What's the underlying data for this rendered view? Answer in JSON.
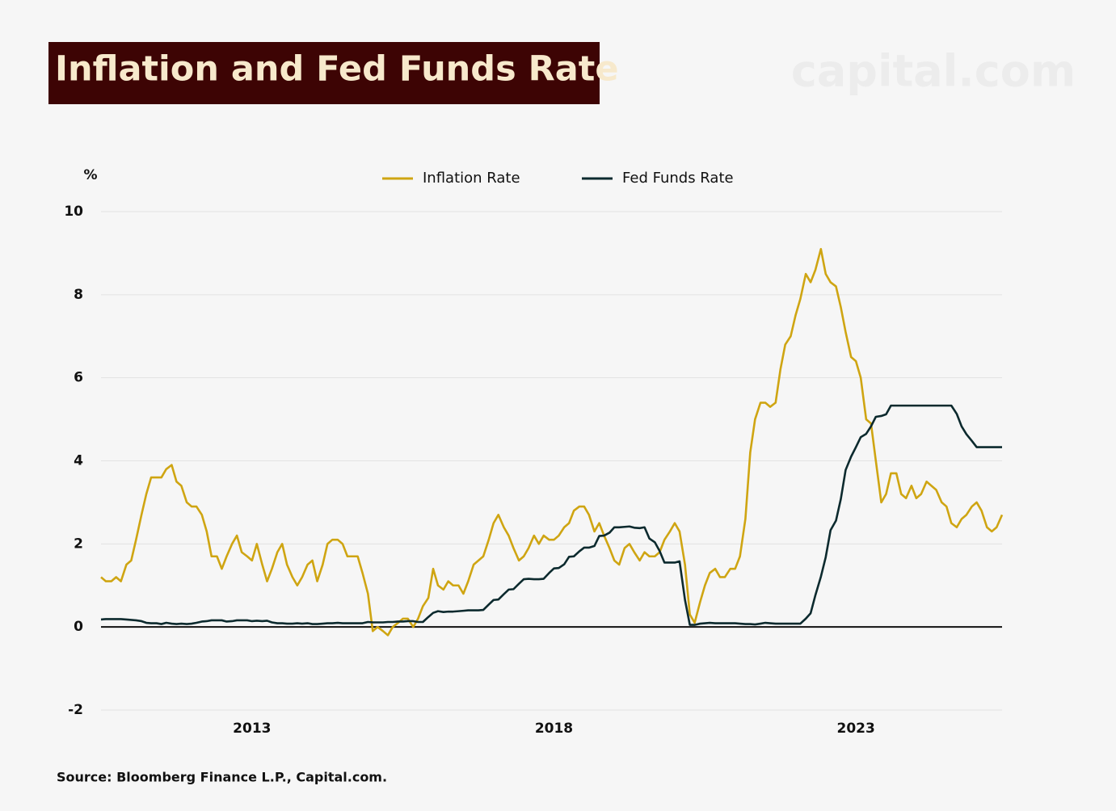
{
  "chart_data": {
    "type": "line",
    "title": "Inflation and Fed Funds Rate",
    "watermark": "capital.com",
    "y_unit": "%",
    "source": "Source: Bloomberg Finance L.P., Capital.com.",
    "xlim": [
      2010.5,
      2025.42
    ],
    "xticks": [
      2013,
      2018,
      2023
    ],
    "ylim": [
      -2,
      10
    ],
    "yticks": [
      -2,
      0,
      2,
      4,
      6,
      8,
      10
    ],
    "grid": true,
    "legend": "top",
    "x": [
      2010.5,
      2010.58,
      2010.67,
      2010.75,
      2010.83,
      2010.92,
      2011,
      2011.08,
      2011.17,
      2011.25,
      2011.33,
      2011.42,
      2011.5,
      2011.58,
      2011.67,
      2011.75,
      2011.83,
      2011.92,
      2012,
      2012.08,
      2012.17,
      2012.25,
      2012.33,
      2012.42,
      2012.5,
      2012.58,
      2012.67,
      2012.75,
      2012.83,
      2012.92,
      2013,
      2013.08,
      2013.17,
      2013.25,
      2013.33,
      2013.42,
      2013.5,
      2013.58,
      2013.67,
      2013.75,
      2013.83,
      2013.92,
      2014,
      2014.08,
      2014.17,
      2014.25,
      2014.33,
      2014.42,
      2014.5,
      2014.58,
      2014.67,
      2014.75,
      2014.83,
      2014.92,
      2015,
      2015.08,
      2015.17,
      2015.25,
      2015.33,
      2015.42,
      2015.5,
      2015.58,
      2015.67,
      2015.75,
      2015.83,
      2015.92,
      2016,
      2016.08,
      2016.17,
      2016.25,
      2016.33,
      2016.42,
      2016.5,
      2016.58,
      2016.67,
      2016.75,
      2016.83,
      2016.92,
      2017,
      2017.08,
      2017.17,
      2017.25,
      2017.33,
      2017.42,
      2017.5,
      2017.58,
      2017.67,
      2017.75,
      2017.83,
      2017.92,
      2018,
      2018.08,
      2018.17,
      2018.25,
      2018.33,
      2018.42,
      2018.5,
      2018.58,
      2018.67,
      2018.75,
      2018.83,
      2018.92,
      2019,
      2019.08,
      2019.17,
      2019.25,
      2019.33,
      2019.42,
      2019.5,
      2019.58,
      2019.67,
      2019.75,
      2019.83,
      2019.92,
      2020,
      2020.08,
      2020.17,
      2020.25,
      2020.33,
      2020.42,
      2020.5,
      2020.58,
      2020.67,
      2020.75,
      2020.83,
      2020.92,
      2021,
      2021.08,
      2021.17,
      2021.25,
      2021.33,
      2021.42,
      2021.5,
      2021.58,
      2021.67,
      2021.75,
      2021.83,
      2021.92,
      2022,
      2022.08,
      2022.17,
      2022.25,
      2022.33,
      2022.42,
      2022.5,
      2022.58,
      2022.67,
      2022.75,
      2022.83,
      2022.92,
      2023,
      2023.08,
      2023.17,
      2023.25,
      2023.33,
      2023.42,
      2023.5,
      2023.58,
      2023.67,
      2023.75,
      2023.83,
      2023.92,
      2024,
      2024.08,
      2024.17,
      2024.25,
      2024.33,
      2024.42,
      2024.5,
      2024.58,
      2024.67,
      2024.75,
      2024.83,
      2024.92,
      2025,
      2025.08,
      2025.17,
      2025.25,
      2025.33,
      2025.42
    ],
    "series": [
      {
        "name": "Inflation Rate",
        "color": "#cfa512",
        "values": [
          1.2,
          1.1,
          1.1,
          1.2,
          1.1,
          1.5,
          1.6,
          2.1,
          2.7,
          3.2,
          3.6,
          3.6,
          3.6,
          3.8,
          3.9,
          3.5,
          3.4,
          3.0,
          2.9,
          2.9,
          2.7,
          2.3,
          1.7,
          1.7,
          1.4,
          1.7,
          2.0,
          2.2,
          1.8,
          1.7,
          1.6,
          2.0,
          1.5,
          1.1,
          1.4,
          1.8,
          2.0,
          1.5,
          1.2,
          1.0,
          1.2,
          1.5,
          1.6,
          1.1,
          1.5,
          2.0,
          2.1,
          2.1,
          2.0,
          1.7,
          1.7,
          1.7,
          1.3,
          0.8,
          -0.1,
          0.0,
          -0.1,
          -0.2,
          0.0,
          0.1,
          0.2,
          0.2,
          0.0,
          0.2,
          0.5,
          0.7,
          1.4,
          1.0,
          0.9,
          1.1,
          1.0,
          1.0,
          0.8,
          1.1,
          1.5,
          1.6,
          1.7,
          2.1,
          2.5,
          2.7,
          2.4,
          2.2,
          1.9,
          1.6,
          1.7,
          1.9,
          2.2,
          2.0,
          2.2,
          2.1,
          2.1,
          2.2,
          2.4,
          2.5,
          2.8,
          2.9,
          2.9,
          2.7,
          2.3,
          2.5,
          2.2,
          1.9,
          1.6,
          1.5,
          1.9,
          2.0,
          1.8,
          1.6,
          1.8,
          1.7,
          1.7,
          1.8,
          2.1,
          2.3,
          2.5,
          2.3,
          1.5,
          0.3,
          0.1,
          0.6,
          1.0,
          1.3,
          1.4,
          1.2,
          1.2,
          1.4,
          1.4,
          1.7,
          2.6,
          4.2,
          5.0,
          5.4,
          5.4,
          5.3,
          5.4,
          6.2,
          6.8,
          7.0,
          7.5,
          7.9,
          8.5,
          8.3,
          8.6,
          9.1,
          8.5,
          8.3,
          8.2,
          7.7,
          7.1,
          6.5,
          6.4,
          6.0,
          5.0,
          4.9,
          4.0,
          3.0,
          3.2,
          3.7,
          3.7,
          3.2,
          3.1,
          3.4,
          3.1,
          3.2,
          3.5,
          3.4,
          3.3,
          3.0,
          2.9,
          2.5,
          2.4,
          2.6,
          2.7,
          2.9,
          3.0,
          2.8,
          2.4,
          2.3,
          2.4,
          2.7
        ]
      },
      {
        "name": "Fed Funds Rate",
        "color": "#0c2a2e",
        "values": [
          0.18,
          0.19,
          0.19,
          0.19,
          0.19,
          0.18,
          0.17,
          0.16,
          0.14,
          0.1,
          0.09,
          0.09,
          0.07,
          0.1,
          0.08,
          0.07,
          0.08,
          0.07,
          0.08,
          0.1,
          0.13,
          0.14,
          0.16,
          0.16,
          0.16,
          0.13,
          0.14,
          0.16,
          0.16,
          0.16,
          0.14,
          0.15,
          0.14,
          0.15,
          0.11,
          0.09,
          0.09,
          0.08,
          0.08,
          0.09,
          0.08,
          0.09,
          0.07,
          0.07,
          0.08,
          0.09,
          0.09,
          0.1,
          0.09,
          0.09,
          0.09,
          0.09,
          0.09,
          0.12,
          0.11,
          0.11,
          0.11,
          0.12,
          0.12,
          0.13,
          0.13,
          0.14,
          0.14,
          0.12,
          0.12,
          0.24,
          0.34,
          0.38,
          0.36,
          0.37,
          0.37,
          0.38,
          0.39,
          0.4,
          0.4,
          0.4,
          0.41,
          0.54,
          0.65,
          0.66,
          0.79,
          0.9,
          0.91,
          1.04,
          1.15,
          1.16,
          1.15,
          1.15,
          1.16,
          1.3,
          1.41,
          1.42,
          1.51,
          1.69,
          1.7,
          1.82,
          1.91,
          1.91,
          1.95,
          2.19,
          2.2,
          2.27,
          2.4,
          2.4,
          2.41,
          2.42,
          2.39,
          2.38,
          2.4,
          2.13,
          2.04,
          1.83,
          1.55,
          1.55,
          1.55,
          1.58,
          0.65,
          0.05,
          0.05,
          0.08,
          0.09,
          0.1,
          0.09,
          0.09,
          0.09,
          0.09,
          0.09,
          0.08,
          0.07,
          0.07,
          0.06,
          0.08,
          0.1,
          0.09,
          0.08,
          0.08,
          0.08,
          0.08,
          0.08,
          0.08,
          0.2,
          0.33,
          0.77,
          1.21,
          1.68,
          2.33,
          2.56,
          3.08,
          3.78,
          4.1,
          4.33,
          4.57,
          4.65,
          4.83,
          5.06,
          5.08,
          5.12,
          5.33,
          5.33,
          5.33,
          5.33,
          5.33,
          5.33,
          5.33,
          5.33,
          5.33,
          5.33,
          5.33,
          5.33,
          5.33,
          5.13,
          4.83,
          4.64,
          4.48,
          4.33,
          4.33,
          4.33,
          4.33,
          4.33,
          4.33
        ]
      }
    ]
  }
}
